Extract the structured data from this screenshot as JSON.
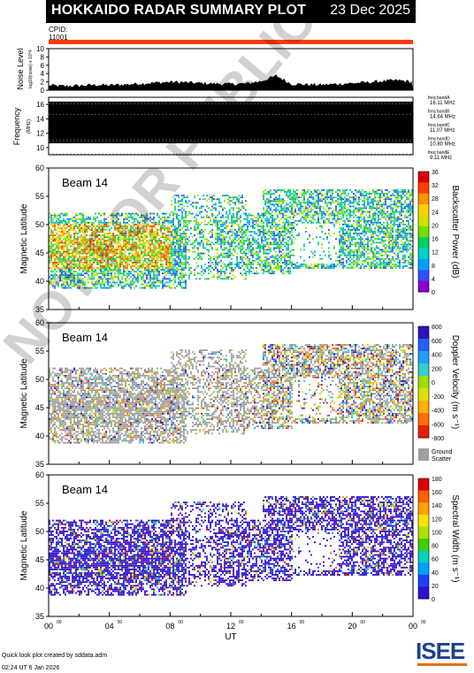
{
  "header": {
    "title": "HOKKAIDO RADAR SUMMARY PLOT",
    "date": "23 Dec 2025"
  },
  "cpid": {
    "label": "CPID:",
    "value": "11001"
  },
  "footer": {
    "credit": "Quick look plot created by sddata.adm",
    "timestamp": "02:24 UT  6 Jan 2026"
  },
  "logo": {
    "text": "ISEE"
  },
  "watermark": "NOT FOR PUBLICATION",
  "chart_data": [
    {
      "type": "area",
      "ylabel": "Noise Level",
      "ylabel_sub": "log10(noise) x 10^4",
      "ylim": [
        0,
        10
      ],
      "yticks": [
        "0",
        "2",
        "4",
        "6",
        "8",
        "10"
      ],
      "x": [
        0,
        1,
        2,
        3,
        4,
        5,
        6,
        7,
        8,
        9,
        10,
        11,
        12,
        13,
        14,
        15,
        16,
        17,
        18,
        19,
        20,
        21,
        22,
        23,
        24
      ],
      "values": [
        1.2,
        1.0,
        1.1,
        1.3,
        1.2,
        1.4,
        1.6,
        1.8,
        2.0,
        1.9,
        1.7,
        1.6,
        1.5,
        1.6,
        2.2,
        3.5,
        1.5,
        1.4,
        1.3,
        1.5,
        1.7,
        1.9,
        2.2,
        2.4,
        2.0
      ]
    },
    {
      "type": "table",
      "ylabel": "Frequency",
      "unit": "(MHz)",
      "ylim": [
        9,
        17
      ],
      "yticks": [
        "10",
        "12",
        "14",
        "16"
      ],
      "bands": [
        {
          "name": "freq bandA",
          "value": "16.11 MHz"
        },
        {
          "name": "freq bandB",
          "value": "14.64 MHz"
        },
        {
          "name": "freq bandC",
          "value": "11.07 MHz"
        },
        {
          "name": "freq bandD",
          "value": "10.80 MHz"
        },
        {
          "name": "freq bandE",
          "value": "9.11 MHz"
        }
      ]
    },
    {
      "type": "heatmap",
      "beam": "Beam 14",
      "ylabel": "Magnetic Latitude",
      "ylim": [
        35,
        60
      ],
      "yticks": [
        "35",
        "40",
        "45",
        "50",
        "55",
        "60"
      ],
      "colorbar_label": "Backscatter Power (dB)",
      "colorbar_ticks": [
        "0",
        "4",
        "8",
        "12",
        "16",
        "20",
        "24",
        "28",
        "32",
        "36"
      ]
    },
    {
      "type": "heatmap",
      "beam": "Beam 14",
      "ylabel": "Magnetic Latitude",
      "ylim": [
        35,
        60
      ],
      "yticks": [
        "35",
        "40",
        "45",
        "50",
        "55",
        "60"
      ],
      "colorbar_label": "Doppler Velocity (m s⁻¹)",
      "colorbar_ticks": [
        "800",
        "600",
        "400",
        "200",
        "0",
        "-200",
        "-400",
        "-600",
        "-800"
      ],
      "ground_scatter_label": [
        "Ground",
        "Scatter"
      ]
    },
    {
      "type": "heatmap",
      "beam": "Beam 14",
      "ylabel": "Magnetic Latitude",
      "ylim": [
        35,
        60
      ],
      "yticks": [
        "35",
        "40",
        "45",
        "50",
        "55",
        "60"
      ],
      "colorbar_label": "Spectral Width (m s⁻¹)",
      "colorbar_ticks": [
        "0",
        "20",
        "40",
        "60",
        "80",
        "100",
        "120",
        "140",
        "160",
        "180"
      ],
      "xlabel": "UT",
      "xticks": [
        "00",
        "04",
        "08",
        "12",
        "16",
        "20",
        "00"
      ],
      "xlim": [
        0,
        24
      ]
    }
  ]
}
